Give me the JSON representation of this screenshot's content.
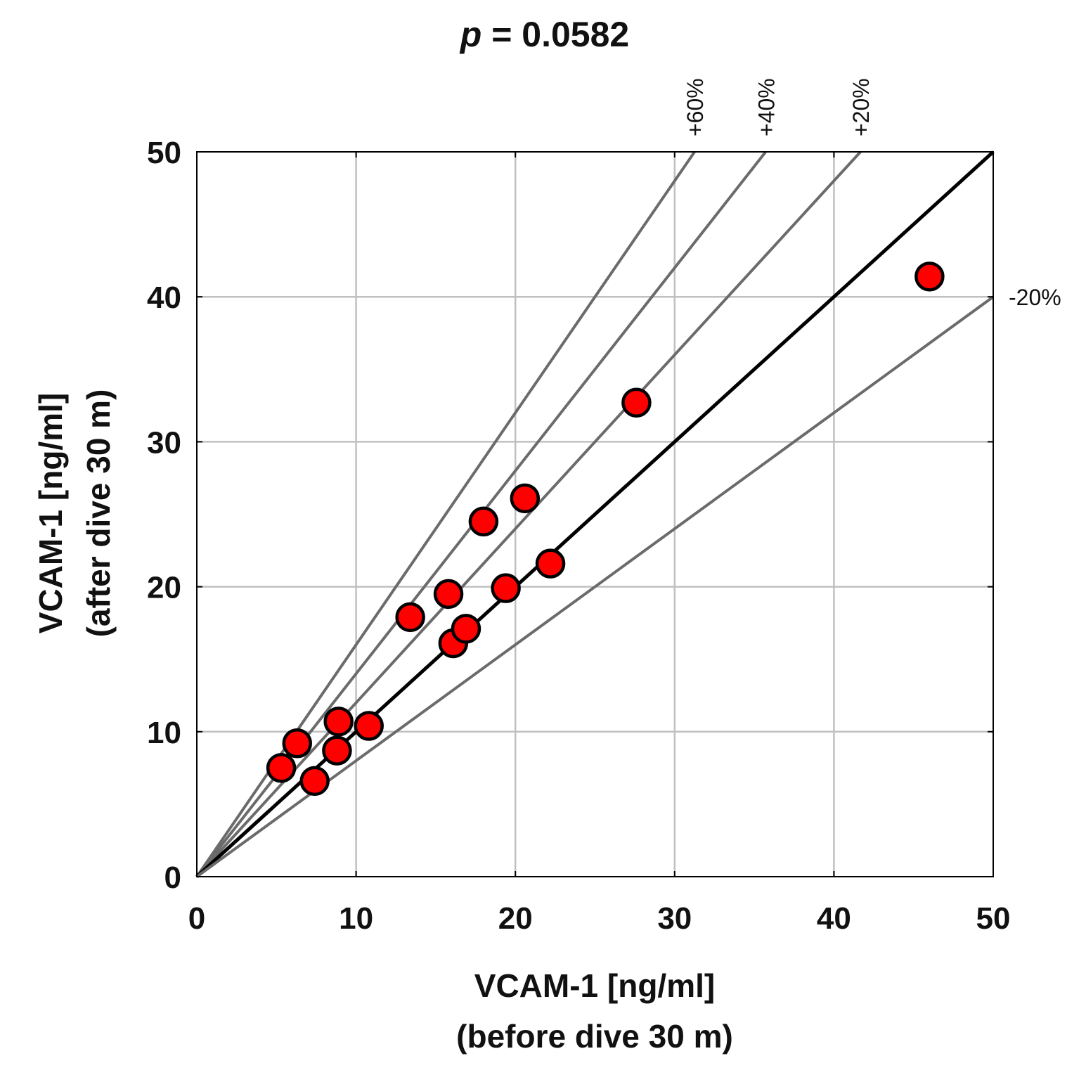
{
  "chart_data": {
    "type": "scatter",
    "title": {
      "p_symbol": "p",
      "rest": " = 0.0582"
    },
    "xlabel": {
      "line1": "VCAM-1 [ng/ml]",
      "line2": "(before dive 30 m)"
    },
    "ylabel": {
      "line1": "VCAM-1 [ng/ml]",
      "line2": "(after dive 30 m)"
    },
    "xlim": [
      0,
      50
    ],
    "ylim": [
      0,
      50
    ],
    "x_ticks": [
      "0",
      "10",
      "20",
      "30",
      "40",
      "50"
    ],
    "y_ticks": [
      "0",
      "10",
      "20",
      "30",
      "40",
      "50"
    ],
    "tick_values": [
      0,
      10,
      20,
      30,
      40,
      50
    ],
    "grid": true,
    "reference_lines": [
      {
        "label": "+60%",
        "slope": 1.6,
        "style": "gray"
      },
      {
        "label": "+40%",
        "slope": 1.4,
        "style": "gray"
      },
      {
        "label": "+20%",
        "slope": 1.2,
        "style": "gray"
      },
      {
        "label": "",
        "slope": 1.0,
        "style": "identity"
      },
      {
        "label": "-20%",
        "slope": 0.8,
        "style": "gray"
      }
    ],
    "points": [
      {
        "x": 5.3,
        "y": 7.5
      },
      {
        "x": 6.3,
        "y": 9.2
      },
      {
        "x": 7.4,
        "y": 6.6
      },
      {
        "x": 8.8,
        "y": 8.7
      },
      {
        "x": 8.9,
        "y": 10.7
      },
      {
        "x": 10.8,
        "y": 10.4
      },
      {
        "x": 13.4,
        "y": 17.9
      },
      {
        "x": 15.8,
        "y": 19.5
      },
      {
        "x": 16.1,
        "y": 16.1
      },
      {
        "x": 16.9,
        "y": 17.1
      },
      {
        "x": 18.0,
        "y": 24.5
      },
      {
        "x": 19.4,
        "y": 19.9
      },
      {
        "x": 20.6,
        "y": 26.1
      },
      {
        "x": 22.2,
        "y": 21.6
      },
      {
        "x": 27.6,
        "y": 32.7
      },
      {
        "x": 46.0,
        "y": 41.4
      }
    ],
    "colors": {
      "marker": "#ff0000",
      "marker_edge": "#000000",
      "grid": "#c0c0c0",
      "ref_line": "#6b6b6b",
      "identity_line": "#000000"
    }
  }
}
